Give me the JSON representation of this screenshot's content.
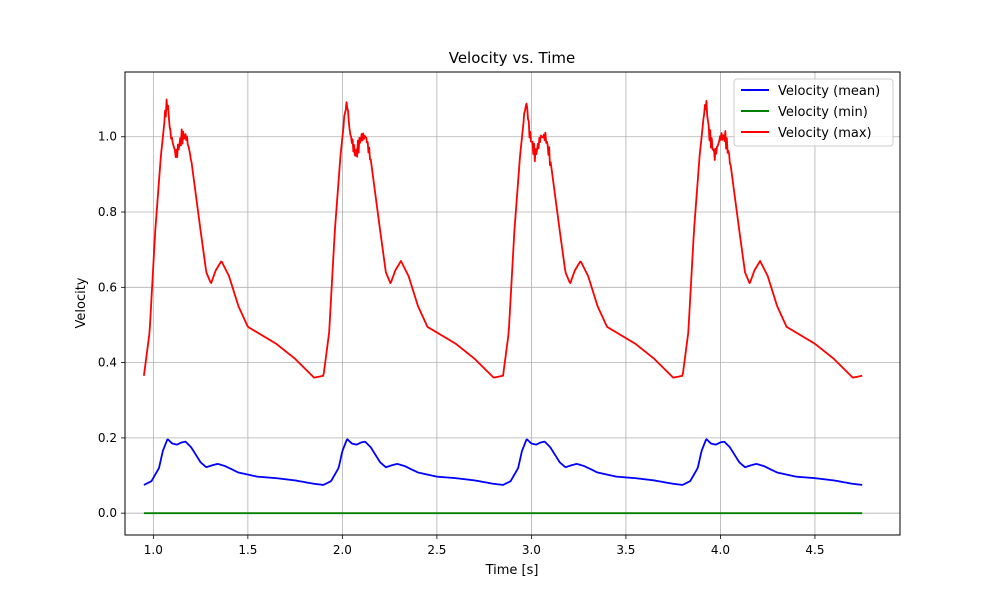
{
  "chart_data": {
    "type": "line",
    "title": "Velocity vs. Time",
    "xlabel": "Time [s]",
    "ylabel": "Velocity",
    "xlim": [
      0.85,
      4.95
    ],
    "ylim": [
      -0.058,
      1.172
    ],
    "xticks": [
      1.0,
      1.5,
      2.0,
      2.5,
      3.0,
      3.5,
      4.0,
      4.5
    ],
    "xtick_labels": [
      "1.0",
      "1.5",
      "2.0",
      "2.5",
      "3.0",
      "3.5",
      "4.0",
      "4.5"
    ],
    "yticks": [
      0.0,
      0.2,
      0.4,
      0.6,
      0.8,
      1.0
    ],
    "ytick_labels": [
      "0.0",
      "0.2",
      "0.4",
      "0.6",
      "0.8",
      "1.0"
    ],
    "grid": true,
    "legend_position": "top-right",
    "period": 0.95,
    "t_start": 0.95,
    "t_end": 4.75,
    "series": [
      {
        "name": "Velocity (mean)",
        "color": "#0000ff",
        "cycle_template": [
          [
            0.0,
            0.075
          ],
          [
            0.04,
            0.085
          ],
          [
            0.08,
            0.12
          ],
          [
            0.1,
            0.165
          ],
          [
            0.125,
            0.197
          ],
          [
            0.15,
            0.185
          ],
          [
            0.175,
            0.182
          ],
          [
            0.2,
            0.188
          ],
          [
            0.22,
            0.19
          ],
          [
            0.25,
            0.175
          ],
          [
            0.3,
            0.135
          ],
          [
            0.33,
            0.122
          ],
          [
            0.36,
            0.127
          ],
          [
            0.39,
            0.131
          ],
          [
            0.43,
            0.125
          ],
          [
            0.5,
            0.108
          ],
          [
            0.6,
            0.097
          ],
          [
            0.7,
            0.093
          ],
          [
            0.8,
            0.087
          ],
          [
            0.9,
            0.078
          ],
          [
            0.95,
            0.075
          ]
        ]
      },
      {
        "name": "Velocity (min)",
        "color": "#008000",
        "cycle_template": [
          [
            0.0,
            0.0
          ],
          [
            0.95,
            0.0
          ]
        ]
      },
      {
        "name": "Velocity (max)",
        "color": "#ff0000",
        "cycle_template": [
          [
            0.0,
            0.365
          ],
          [
            0.03,
            0.48
          ],
          [
            0.06,
            0.75
          ],
          [
            0.09,
            0.95
          ],
          [
            0.115,
            1.07
          ],
          [
            0.125,
            1.09
          ],
          [
            0.14,
            1.01
          ],
          [
            0.17,
            0.95
          ],
          [
            0.2,
            1.0
          ],
          [
            0.225,
            1.0
          ],
          [
            0.25,
            0.94
          ],
          [
            0.3,
            0.75
          ],
          [
            0.33,
            0.64
          ],
          [
            0.355,
            0.61
          ],
          [
            0.38,
            0.645
          ],
          [
            0.41,
            0.67
          ],
          [
            0.45,
            0.63
          ],
          [
            0.5,
            0.55
          ],
          [
            0.55,
            0.495
          ],
          [
            0.6,
            0.48
          ],
          [
            0.7,
            0.45
          ],
          [
            0.8,
            0.41
          ],
          [
            0.85,
            0.385
          ],
          [
            0.9,
            0.36
          ],
          [
            0.95,
            0.365
          ]
        ]
      }
    ]
  }
}
